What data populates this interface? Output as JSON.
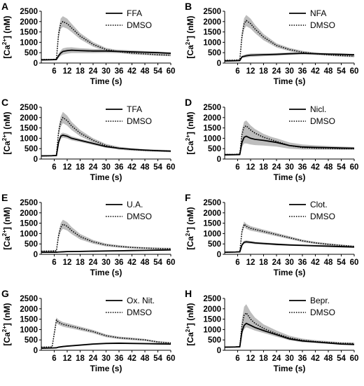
{
  "figure": {
    "colors": {
      "treatment_line": "#000000",
      "dmso_line": "#000000",
      "sem_band": "#bdbdbd"
    }
  },
  "chart_data": [
    {
      "panel": "A",
      "type": "line",
      "xlabel": "Time (s)",
      "ylabel": "[Ca2+] (nM)",
      "xlim": [
        0,
        60
      ],
      "ylim": [
        0,
        2500
      ],
      "xticks": [
        6,
        12,
        18,
        24,
        30,
        36,
        42,
        48,
        54,
        60
      ],
      "yticks": [
        0,
        500,
        1000,
        1500,
        2000,
        2500
      ],
      "legend_position": "top-right",
      "series": [
        {
          "name": "FFA",
          "style": "solid",
          "x": [
            0,
            5,
            7,
            8,
            9,
            10,
            12,
            14,
            18,
            24,
            30,
            36,
            42,
            48,
            54,
            60
          ],
          "y": [
            150,
            160,
            170,
            350,
            480,
            560,
            600,
            620,
            600,
            580,
            580,
            560,
            540,
            520,
            500,
            470
          ],
          "band": [
            30,
            30,
            40,
            100,
            130,
            150,
            150,
            140,
            120,
            100,
            90,
            80,
            70,
            60,
            50,
            50
          ]
        },
        {
          "name": "DMSO",
          "style": "dotted",
          "x": [
            0,
            5,
            7,
            8,
            9,
            10,
            12,
            14,
            18,
            24,
            30,
            36,
            42,
            48,
            54,
            60
          ],
          "y": [
            170,
            170,
            180,
            1400,
            1900,
            2000,
            1900,
            1700,
            1300,
            900,
            650,
            550,
            480,
            440,
            400,
            380
          ],
          "band": [
            30,
            30,
            40,
            200,
            250,
            260,
            240,
            200,
            150,
            110,
            80,
            70,
            60,
            50,
            50,
            50
          ]
        }
      ]
    },
    {
      "panel": "B",
      "type": "line",
      "xlabel": "Time (s)",
      "ylabel": "[Ca2+] (nM)",
      "xlim": [
        0,
        60
      ],
      "ylim": [
        0,
        2500
      ],
      "xticks": [
        6,
        12,
        18,
        24,
        30,
        36,
        42,
        48,
        54,
        60
      ],
      "yticks": [
        0,
        500,
        1000,
        1500,
        2000,
        2500
      ],
      "legend_position": "top-right",
      "series": [
        {
          "name": "NFA",
          "style": "solid",
          "x": [
            0,
            5,
            7,
            8,
            10,
            12,
            18,
            24,
            30,
            36,
            42,
            48,
            54,
            60
          ],
          "y": [
            100,
            110,
            120,
            300,
            350,
            380,
            400,
            420,
            450,
            470,
            450,
            430,
            420,
            400
          ],
          "band": [
            30,
            30,
            30,
            60,
            80,
            80,
            70,
            60,
            60,
            50,
            50,
            50,
            40,
            40
          ]
        },
        {
          "name": "DMSO",
          "style": "dotted",
          "x": [
            0,
            5,
            7,
            8,
            9,
            10,
            12,
            14,
            18,
            24,
            30,
            36,
            42,
            48,
            54,
            60
          ],
          "y": [
            130,
            140,
            150,
            1300,
            1900,
            2050,
            1900,
            1650,
            1250,
            850,
            650,
            520,
            450,
            400,
            360,
            330
          ],
          "band": [
            30,
            30,
            40,
            200,
            260,
            270,
            240,
            200,
            150,
            100,
            80,
            70,
            60,
            50,
            50,
            50
          ]
        }
      ]
    },
    {
      "panel": "C",
      "type": "line",
      "xlabel": "Time (s)",
      "ylabel": "[Ca2+] (nM)",
      "xlim": [
        0,
        60
      ],
      "ylim": [
        0,
        2500
      ],
      "xticks": [
        6,
        12,
        18,
        24,
        30,
        36,
        42,
        48,
        54,
        60
      ],
      "yticks": [
        0,
        500,
        1000,
        1500,
        2000,
        2500
      ],
      "legend_position": "top-right",
      "series": [
        {
          "name": "TFA",
          "style": "solid",
          "x": [
            0,
            5,
            7,
            8,
            9,
            10,
            12,
            14,
            18,
            24,
            30,
            36,
            42,
            48,
            54,
            60
          ],
          "y": [
            150,
            160,
            170,
            800,
            1100,
            1150,
            1100,
            1000,
            900,
            750,
            600,
            520,
            470,
            430,
            400,
            380
          ],
          "band": [
            30,
            30,
            30,
            100,
            120,
            120,
            110,
            100,
            80,
            70,
            60,
            50,
            50,
            40,
            40,
            40
          ]
        },
        {
          "name": "DMSO",
          "style": "dotted",
          "x": [
            0,
            5,
            7,
            8,
            9,
            10,
            12,
            14,
            18,
            24,
            30,
            36,
            42,
            48,
            54,
            60
          ],
          "y": [
            150,
            160,
            170,
            1300,
            1800,
            2000,
            1850,
            1600,
            1250,
            900,
            650,
            520,
            460,
            420,
            400,
            380
          ],
          "band": [
            30,
            30,
            40,
            200,
            250,
            270,
            240,
            200,
            150,
            100,
            80,
            70,
            60,
            50,
            50,
            50
          ]
        }
      ]
    },
    {
      "panel": "D",
      "type": "line",
      "xlabel": "Time (s)",
      "ylabel": "[Ca2+] (nM)",
      "xlim": [
        0,
        60
      ],
      "ylim": [
        0,
        2500
      ],
      "xticks": [
        6,
        12,
        18,
        24,
        30,
        36,
        42,
        48,
        54,
        60
      ],
      "yticks": [
        0,
        500,
        1000,
        1500,
        2000,
        2500
      ],
      "legend_position": "top-right",
      "series": [
        {
          "name": "Nicl.",
          "style": "solid",
          "x": [
            0,
            5,
            7,
            8,
            9,
            10,
            12,
            14,
            18,
            24,
            30,
            36,
            42,
            48,
            54,
            60
          ],
          "y": [
            200,
            210,
            220,
            800,
            1050,
            1100,
            1000,
            950,
            900,
            800,
            650,
            580,
            560,
            550,
            530,
            520
          ],
          "band": [
            40,
            40,
            50,
            200,
            300,
            350,
            300,
            280,
            250,
            200,
            150,
            120,
            100,
            80,
            70,
            60
          ]
        },
        {
          "name": "DMSO",
          "style": "dotted",
          "x": [
            0,
            5,
            7,
            8,
            9,
            10,
            12,
            14,
            18,
            24,
            30,
            36,
            42,
            48,
            54,
            60
          ],
          "y": [
            220,
            220,
            230,
            1200,
            1550,
            1600,
            1400,
            1250,
            1050,
            850,
            650,
            550,
            520,
            510,
            500,
            500
          ],
          "band": [
            40,
            40,
            50,
            200,
            250,
            260,
            220,
            200,
            160,
            120,
            90,
            80,
            70,
            60,
            60,
            60
          ]
        }
      ]
    },
    {
      "panel": "E",
      "type": "line",
      "xlabel": "Time (s)",
      "ylabel": "[Ca2+] (nM)",
      "xlim": [
        0,
        60
      ],
      "ylim": [
        0,
        2500
      ],
      "xticks": [
        6,
        12,
        18,
        24,
        30,
        36,
        42,
        48,
        54,
        60
      ],
      "yticks": [
        0,
        500,
        1000,
        1500,
        2000,
        2500
      ],
      "legend_position": "top-right",
      "series": [
        {
          "name": "U.A.",
          "style": "solid",
          "x": [
            0,
            5,
            7,
            8,
            10,
            12,
            18,
            24,
            30,
            36,
            42,
            48,
            54,
            60
          ],
          "y": [
            100,
            100,
            100,
            110,
            120,
            130,
            140,
            150,
            160,
            170,
            180,
            190,
            200,
            210
          ],
          "band": [
            20,
            20,
            20,
            20,
            30,
            30,
            30,
            30,
            30,
            30,
            30,
            30,
            30,
            30
          ]
        },
        {
          "name": "DMSO",
          "style": "dotted",
          "x": [
            0,
            5,
            7,
            8,
            9,
            10,
            12,
            14,
            18,
            24,
            30,
            36,
            42,
            48,
            54,
            60
          ],
          "y": [
            150,
            160,
            170,
            900,
            1300,
            1450,
            1350,
            1150,
            850,
            600,
            450,
            380,
            330,
            300,
            280,
            270
          ],
          "band": [
            30,
            30,
            40,
            150,
            200,
            220,
            200,
            170,
            130,
            90,
            70,
            60,
            50,
            40,
            40,
            40
          ]
        }
      ]
    },
    {
      "panel": "F",
      "type": "line",
      "xlabel": "Time (s)",
      "ylabel": "[Ca2+] (nM)",
      "xlim": [
        0,
        60
      ],
      "ylim": [
        0,
        2500
      ],
      "xticks": [
        6,
        12,
        18,
        24,
        30,
        36,
        42,
        48,
        54,
        60
      ],
      "yticks": [
        0,
        500,
        1000,
        1500,
        2000,
        2500
      ],
      "legend_position": "top-right",
      "series": [
        {
          "name": "Clot.",
          "style": "solid",
          "x": [
            0,
            5,
            7,
            8,
            9,
            10,
            12,
            14,
            18,
            24,
            30,
            36,
            42,
            48,
            54,
            60
          ],
          "y": [
            100,
            110,
            120,
            450,
            580,
            600,
            580,
            550,
            520,
            480,
            450,
            430,
            410,
            390,
            370,
            350
          ],
          "band": [
            20,
            20,
            30,
            60,
            70,
            70,
            60,
            60,
            50,
            50,
            40,
            40,
            40,
            40,
            40,
            40
          ]
        },
        {
          "name": "DMSO",
          "style": "dotted",
          "x": [
            0,
            5,
            7,
            8,
            9,
            10,
            12,
            14,
            18,
            24,
            30,
            36,
            42,
            48,
            54,
            60
          ],
          "y": [
            100,
            110,
            120,
            1100,
            1450,
            1350,
            1250,
            1200,
            1100,
            950,
            800,
            650,
            550,
            480,
            430,
            380
          ],
          "band": [
            20,
            20,
            30,
            120,
            130,
            120,
            110,
            100,
            90,
            80,
            70,
            60,
            50,
            50,
            40,
            40
          ]
        }
      ]
    },
    {
      "panel": "G",
      "type": "line",
      "xlabel": "Time (s)",
      "ylabel": "[Ca2+] (nM)",
      "xlim": [
        0,
        60
      ],
      "ylim": [
        0,
        2500
      ],
      "xticks": [
        6,
        12,
        18,
        24,
        30,
        36,
        42,
        48,
        54,
        60
      ],
      "yticks": [
        0,
        500,
        1000,
        1500,
        2000,
        2500
      ],
      "legend_position": "top-right",
      "series": [
        {
          "name": "Ox. Nit.",
          "style": "solid",
          "x": [
            0,
            5,
            7,
            8,
            10,
            12,
            18,
            24,
            30,
            36,
            42,
            48,
            54,
            60
          ],
          "y": [
            100,
            110,
            120,
            150,
            180,
            200,
            250,
            300,
            330,
            340,
            330,
            320,
            310,
            300
          ],
          "band": [
            20,
            20,
            20,
            30,
            30,
            30,
            40,
            40,
            40,
            40,
            40,
            40,
            40,
            40
          ]
        },
        {
          "name": "DMSO",
          "style": "dotted",
          "x": [
            0,
            5,
            6,
            7,
            8,
            10,
            12,
            14,
            18,
            24,
            30,
            36,
            42,
            48,
            54,
            60
          ],
          "y": [
            150,
            160,
            800,
            1450,
            1350,
            1250,
            1200,
            1150,
            1050,
            900,
            700,
            600,
            550,
            500,
            400,
            350
          ],
          "band": [
            30,
            30,
            100,
            130,
            120,
            110,
            110,
            100,
            90,
            80,
            70,
            60,
            60,
            50,
            40,
            40
          ]
        }
      ]
    },
    {
      "panel": "H",
      "type": "line",
      "xlabel": "Time (s)",
      "ylabel": "[Ca2+] (nM)",
      "xlim": [
        0,
        60
      ],
      "ylim": [
        0,
        2500
      ],
      "xticks": [
        6,
        12,
        18,
        24,
        30,
        36,
        42,
        48,
        54,
        60
      ],
      "yticks": [
        0,
        500,
        1000,
        1500,
        2000,
        2500
      ],
      "legend_position": "top-right",
      "series": [
        {
          "name": "Bepr.",
          "style": "solid",
          "x": [
            0,
            5,
            7,
            8,
            9,
            10,
            12,
            14,
            18,
            24,
            30,
            36,
            42,
            48,
            54,
            60
          ],
          "y": [
            150,
            160,
            170,
            900,
            1200,
            1300,
            1200,
            1100,
            950,
            750,
            550,
            450,
            400,
            350,
            300,
            280
          ],
          "band": [
            30,
            30,
            40,
            150,
            180,
            190,
            170,
            150,
            120,
            90,
            70,
            60,
            50,
            40,
            40,
            40
          ]
        },
        {
          "name": "DMSO",
          "style": "dotted",
          "x": [
            0,
            5,
            7,
            8,
            9,
            10,
            12,
            14,
            18,
            24,
            30,
            36,
            42,
            48,
            54,
            60
          ],
          "y": [
            150,
            160,
            170,
            1200,
            1700,
            1800,
            1500,
            1300,
            1050,
            800,
            600,
            480,
            420,
            380,
            340,
            320
          ],
          "band": [
            30,
            30,
            40,
            300,
            400,
            420,
            350,
            280,
            200,
            150,
            100,
            80,
            70,
            60,
            50,
            50
          ]
        }
      ]
    }
  ]
}
